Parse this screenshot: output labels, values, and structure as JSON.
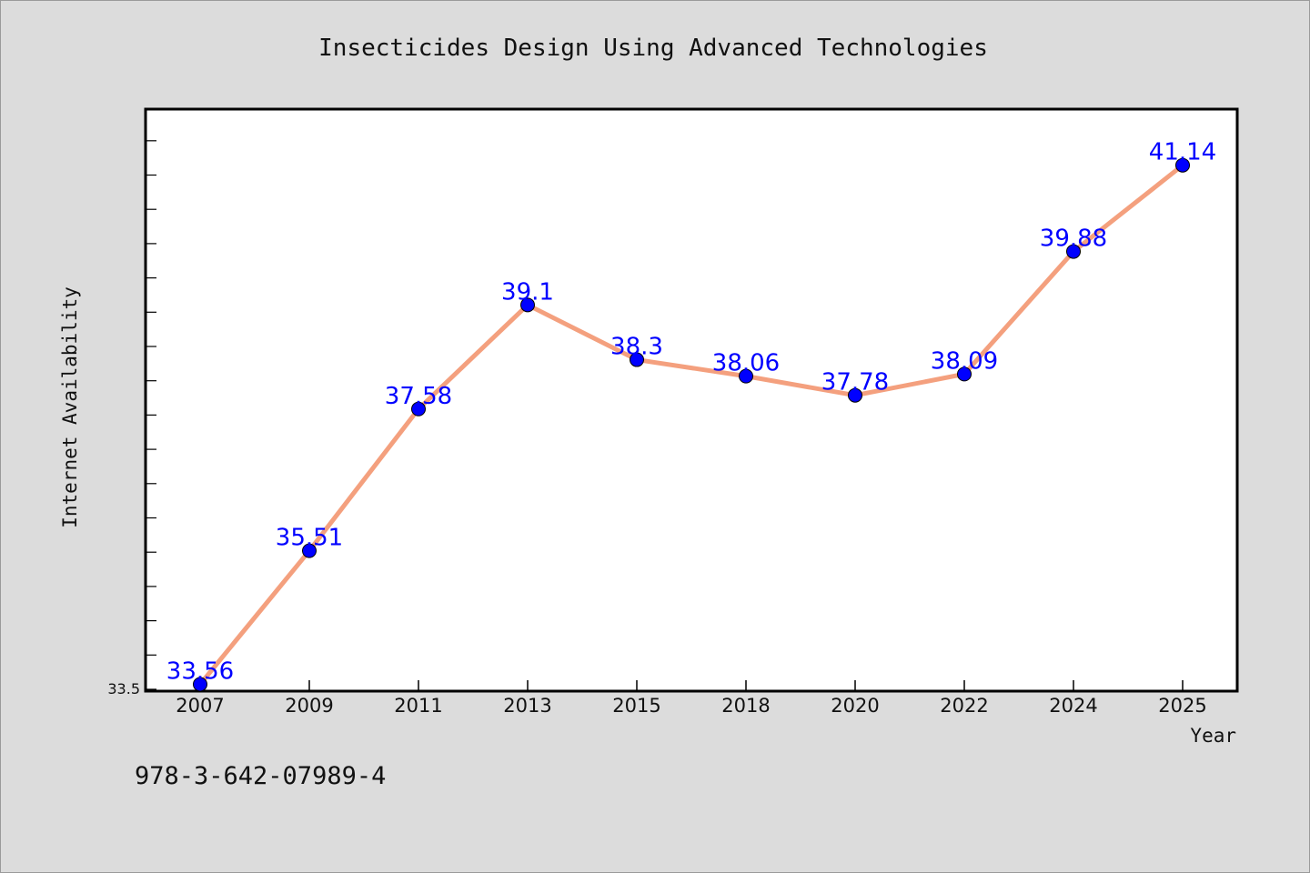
{
  "chart_data": {
    "type": "line",
    "title": "Insecticides Design Using Advanced Technologies",
    "xlabel": "Year",
    "ylabel": "Internet Availability",
    "categories": [
      "2007",
      "2009",
      "2011",
      "2013",
      "2015",
      "2018",
      "2020",
      "2022",
      "2024",
      "2025"
    ],
    "series": [
      {
        "values": [
          33.56,
          35.51,
          37.58,
          39.1,
          38.3,
          38.06,
          37.78,
          38.09,
          39.88,
          41.14
        ],
        "labels": [
          "33.56",
          "35.51",
          "37.58",
          "39.1",
          "38.3",
          "38.06",
          "37.78",
          "38.09",
          "39.88",
          "41.14"
        ]
      }
    ],
    "ylim": [
      33.5,
      42.0
    ],
    "yticks_labeled": [
      "33.5"
    ],
    "grid": false,
    "colors": {
      "line": "#f4a07e",
      "marker": "#0000ff",
      "data_label": "#0000ff",
      "background": "#dcdcdc",
      "plot_background": "#ffffff"
    }
  },
  "footer_note": "978-3-642-07989-4"
}
